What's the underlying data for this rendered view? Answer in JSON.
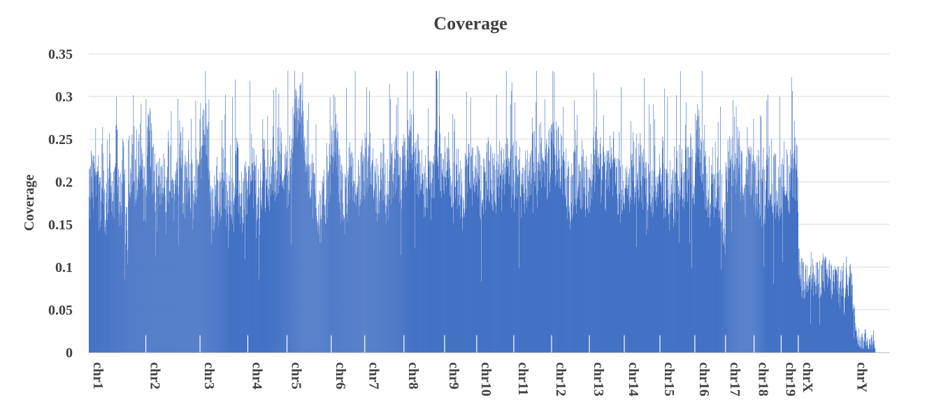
{
  "chart_data": {
    "type": "bar",
    "title": "Coverage",
    "ylabel": "Coverage",
    "xlabel": "",
    "ylim": [
      0,
      0.35
    ],
    "yticks": [
      0,
      0.05,
      0.1,
      0.15,
      0.2,
      0.25,
      0.3,
      0.35
    ],
    "ytick_labels": [
      "0",
      "0.05",
      "0.1",
      "0.15",
      "0.2",
      "0.25",
      "0.3",
      "0.35"
    ],
    "grid": true,
    "legend": "none",
    "bar_color": "#4472c4",
    "categories": [
      "chr1",
      "chr2",
      "chr3",
      "chr4",
      "chr5",
      "chr6",
      "chr7",
      "chr8",
      "chr9",
      "chr10",
      "chr11",
      "chr12",
      "chr13",
      "chr14",
      "chr15",
      "chr16",
      "chr17",
      "chr18",
      "chr19",
      "chrX",
      "chrY"
    ],
    "segments": [
      {
        "name": "chr1",
        "profile": [
          0.17,
          0.21,
          0.19,
          0.23,
          0.2,
          0.17,
          0.24,
          0.16,
          0.18,
          0.22,
          0.2,
          0.15,
          0.27,
          0.19,
          0.17,
          0.22,
          0.16,
          0.14,
          0.2,
          0.24,
          0.2,
          0.18,
          0.22,
          0.26,
          0.19,
          0.21
        ]
      },
      {
        "name": "chr2",
        "profile": [
          0.19,
          0.28,
          0.23,
          0.2,
          0.18,
          0.2,
          0.22,
          0.17,
          0.24,
          0.2,
          0.19,
          0.21,
          0.25,
          0.18,
          0.2,
          0.23,
          0.19,
          0.17,
          0.22,
          0.2
        ]
      },
      {
        "name": "chr3",
        "profile": [
          0.2,
          0.25,
          0.27,
          0.24,
          0.15,
          0.18,
          0.2,
          0.17,
          0.21,
          0.19,
          0.16,
          0.2,
          0.18,
          0.22,
          0.19,
          0.17,
          0.2,
          0.19
        ]
      },
      {
        "name": "chr4",
        "profile": [
          0.18,
          0.22,
          0.2,
          0.21,
          0.19,
          0.17,
          0.2,
          0.22,
          0.18,
          0.21,
          0.2,
          0.23,
          0.2,
          0.22,
          0.24,
          0.21,
          0.23,
          0.2
        ]
      },
      {
        "name": "chr5",
        "profile": [
          0.2,
          0.23,
          0.26,
          0.28,
          0.29,
          0.27,
          0.24,
          0.22,
          0.2,
          0.18,
          0.17,
          0.16,
          0.18,
          0.2,
          0.21
        ]
      },
      {
        "name": "chr6",
        "profile": [
          0.24,
          0.27,
          0.25,
          0.22,
          0.19,
          0.17,
          0.18,
          0.2,
          0.21,
          0.19,
          0.22,
          0.2,
          0.19,
          0.21,
          0.2
        ]
      },
      {
        "name": "chr7",
        "profile": [
          0.22,
          0.2,
          0.23,
          0.21,
          0.19,
          0.2,
          0.22,
          0.18,
          0.2,
          0.21,
          0.23,
          0.2,
          0.19,
          0.22
        ]
      },
      {
        "name": "chr8",
        "profile": [
          0.21,
          0.23,
          0.26,
          0.24,
          0.22,
          0.2,
          0.19,
          0.21,
          0.2,
          0.22,
          0.24,
          0.21,
          0.2
        ]
      },
      {
        "name": "chr9",
        "profile": [
          0.22,
          0.24,
          0.2,
          0.19,
          0.21,
          0.2,
          0.18,
          0.2,
          0.22,
          0.21,
          0.2,
          0.19
        ]
      },
      {
        "name": "chr10",
        "profile": [
          0.21,
          0.19,
          0.2,
          0.22,
          0.2,
          0.19,
          0.21,
          0.2,
          0.22,
          0.2,
          0.21
        ]
      },
      {
        "name": "chr11",
        "profile": [
          0.2,
          0.22,
          0.19,
          0.2,
          0.21,
          0.23,
          0.22,
          0.24,
          0.21,
          0.22,
          0.23
        ]
      },
      {
        "name": "chr12",
        "profile": [
          0.24,
          0.23,
          0.22,
          0.2,
          0.19,
          0.2,
          0.21,
          0.2,
          0.19
        ]
      },
      {
        "name": "chr13",
        "profile": [
          0.2,
          0.22,
          0.24,
          0.21,
          0.2,
          0.23,
          0.22,
          0.2,
          0.19,
          0.21
        ]
      },
      {
        "name": "chr14",
        "profile": [
          0.18,
          0.19,
          0.2,
          0.22,
          0.21,
          0.2,
          0.18,
          0.19,
          0.2,
          0.21
        ]
      },
      {
        "name": "chr15",
        "profile": [
          0.18,
          0.2,
          0.17,
          0.19,
          0.21,
          0.2,
          0.22,
          0.21
        ]
      },
      {
        "name": "chr16",
        "profile": [
          0.24,
          0.25,
          0.22,
          0.2,
          0.19,
          0.2,
          0.21,
          0.18,
          0.17,
          0.15
        ]
      },
      {
        "name": "chr17",
        "profile": [
          0.2,
          0.22,
          0.21,
          0.24,
          0.2,
          0.19,
          0.21,
          0.2
        ]
      },
      {
        "name": "chr18",
        "profile": [
          0.19,
          0.2,
          0.18,
          0.19,
          0.21,
          0.2,
          0.19,
          0.2
        ]
      },
      {
        "name": "chr19",
        "profile": [
          0.2,
          0.22,
          0.21,
          0.19,
          0.2,
          0.22,
          0.21,
          0.2
        ]
      },
      {
        "name": "chrX",
        "profile": [
          0.1,
          0.09,
          0.08,
          0.09,
          0.1,
          0.09,
          0.08,
          0.085,
          0.09,
          0.095,
          0.085,
          0.09,
          0.08,
          0.085,
          0.09,
          0.085,
          0.08,
          0.09,
          0.085,
          0.08
        ]
      },
      {
        "name": "chrY",
        "profile": [
          0.06,
          0.04,
          0.02,
          0.015,
          0.01,
          0.02,
          0.015,
          0.01,
          0.02,
          0.015
        ]
      }
    ]
  }
}
